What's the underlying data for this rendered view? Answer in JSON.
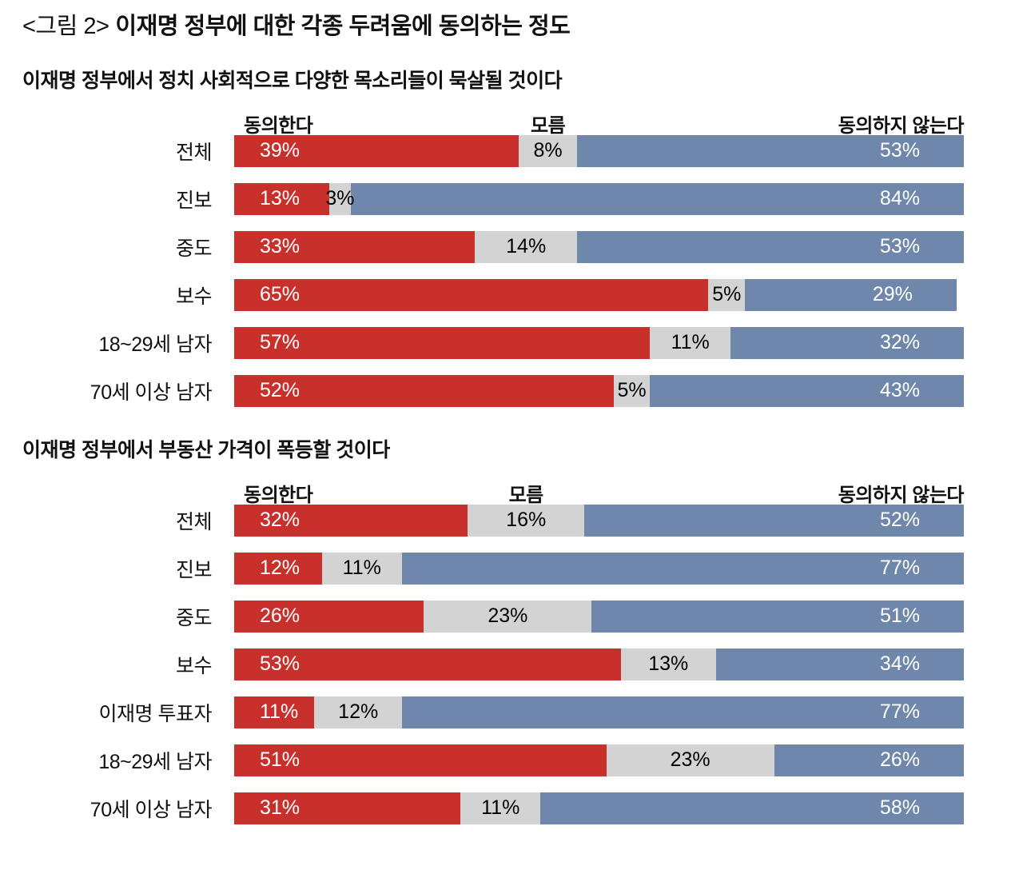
{
  "title": {
    "prefix": "<그림 2>",
    "text": "이재명 정부에 대한 각종 두려움에 동의하는 정도"
  },
  "legend": {
    "agree": "동의한다",
    "unknown": "모름",
    "disagree": "동의하지 않는다"
  },
  "colors": {
    "agree": "#c8302c",
    "unknown": "#d3d3d3",
    "disagree": "#6e87aa"
  },
  "chart_data": [
    {
      "type": "bar",
      "stacked": true,
      "title": "이재명 정부에서 정치 사회적으로 다양한 목소리들이 묵살될 것이다",
      "unit": "%",
      "xlim": [
        0,
        100
      ],
      "categories": [
        "전체",
        "진보",
        "중도",
        "보수",
        "18~29세 남자",
        "70세 이상 남자"
      ],
      "series": [
        {
          "name": "동의한다",
          "key": "agree",
          "values": [
            39,
            13,
            33,
            65,
            57,
            52
          ]
        },
        {
          "name": "모름",
          "key": "unknown",
          "values": [
            8,
            3,
            14,
            5,
            11,
            5
          ]
        },
        {
          "name": "동의하지 않는다",
          "key": "disagree",
          "values": [
            53,
            84,
            53,
            29,
            32,
            43
          ]
        }
      ]
    },
    {
      "type": "bar",
      "stacked": true,
      "title": "이재명 정부에서 부동산 가격이 폭등할 것이다",
      "unit": "%",
      "xlim": [
        0,
        100
      ],
      "categories": [
        "전체",
        "진보",
        "중도",
        "보수",
        "이재명 투표자",
        "18~29세 남자",
        "70세 이상 남자"
      ],
      "series": [
        {
          "name": "동의한다",
          "key": "agree",
          "values": [
            32,
            12,
            26,
            53,
            11,
            51,
            31
          ]
        },
        {
          "name": "모름",
          "key": "unknown",
          "values": [
            16,
            11,
            23,
            13,
            12,
            23,
            11
          ]
        },
        {
          "name": "동의하지 않는다",
          "key": "disagree",
          "values": [
            52,
            77,
            51,
            34,
            77,
            26,
            58
          ]
        }
      ]
    }
  ]
}
